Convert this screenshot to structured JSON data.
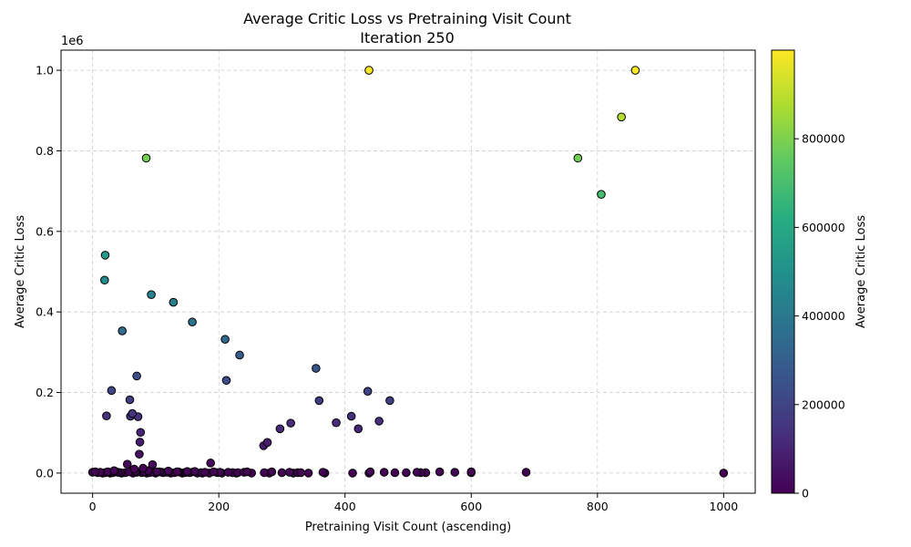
{
  "chart_data": {
    "type": "scatter",
    "title": "Average Critic Loss vs Pretraining Visit Count",
    "subtitle": "Iteration 250",
    "xlabel": "Pretraining Visit Count (ascending)",
    "ylabel": "Average Critic Loss",
    "y_offset_text": "1e6",
    "xlim": [
      -50,
      1050
    ],
    "ylim": [
      -50000,
      1050000
    ],
    "xticks": [
      0,
      200,
      400,
      600,
      800,
      1000
    ],
    "yticks": [
      0.0,
      0.2,
      0.4,
      0.6,
      0.8,
      1.0
    ],
    "ytick_scale": 1000000,
    "grid": true,
    "colorbar": {
      "label": "Average Critic Loss",
      "colormap": "viridis",
      "range": [
        0,
        1000000
      ],
      "ticks": [
        0,
        200000,
        400000,
        600000,
        800000
      ]
    },
    "points": [
      [
        860,
        1000000
      ],
      [
        438,
        1000000
      ],
      [
        838,
        884000
      ],
      [
        85,
        782000
      ],
      [
        769,
        782000
      ],
      [
        806,
        692000
      ],
      [
        20,
        541000
      ],
      [
        19,
        479000
      ],
      [
        93,
        443000
      ],
      [
        128,
        424000
      ],
      [
        158,
        375000
      ],
      [
        47,
        353000
      ],
      [
        210,
        332000
      ],
      [
        233,
        293000
      ],
      [
        354,
        260000
      ],
      [
        70,
        241000
      ],
      [
        212,
        230000
      ],
      [
        30,
        205000
      ],
      [
        436,
        203000
      ],
      [
        59,
        182000
      ],
      [
        359,
        180000
      ],
      [
        471,
        180000
      ],
      [
        22,
        142000
      ],
      [
        63,
        148000
      ],
      [
        60,
        141000
      ],
      [
        72,
        140000
      ],
      [
        410,
        141000
      ],
      [
        454,
        129000
      ],
      [
        386,
        125000
      ],
      [
        314,
        124000
      ],
      [
        297,
        110000
      ],
      [
        421,
        110000
      ],
      [
        76,
        101000
      ],
      [
        75,
        77000
      ],
      [
        277,
        76000
      ],
      [
        271,
        68000
      ],
      [
        74,
        47000
      ],
      [
        187,
        25000
      ],
      [
        55,
        22000
      ],
      [
        95,
        21000
      ],
      [
        80,
        12000
      ],
      [
        66,
        10000
      ],
      [
        1000,
        0
      ],
      [
        687,
        2000
      ],
      [
        600,
        3000
      ],
      [
        574,
        2000
      ],
      [
        550,
        3000
      ],
      [
        528,
        1000
      ],
      [
        520,
        1000
      ],
      [
        514,
        2000
      ],
      [
        497,
        1000
      ],
      [
        479,
        1000
      ],
      [
        462,
        2000
      ],
      [
        440,
        3000
      ],
      [
        438,
        0
      ],
      [
        412,
        0
      ],
      [
        368,
        0
      ],
      [
        365,
        2000
      ],
      [
        342,
        0
      ],
      [
        325,
        1000
      ],
      [
        318,
        0
      ],
      [
        312,
        2000
      ],
      [
        284,
        3000
      ],
      [
        280,
        0
      ],
      [
        272,
        1000
      ],
      [
        252,
        0
      ],
      [
        245,
        3000
      ],
      [
        240,
        2000
      ],
      [
        228,
        0
      ],
      [
        222,
        1000
      ],
      [
        215,
        2000
      ],
      [
        205,
        0
      ],
      [
        198,
        1000
      ],
      [
        192,
        3000
      ],
      [
        185,
        0
      ],
      [
        178,
        2000
      ],
      [
        172,
        1000
      ],
      [
        166,
        0
      ],
      [
        160,
        3000
      ],
      [
        154,
        1000
      ],
      [
        148,
        2000
      ],
      [
        142,
        0
      ],
      [
        136,
        3000
      ],
      [
        130,
        1000
      ],
      [
        124,
        0
      ],
      [
        118,
        2000
      ],
      [
        112,
        1000
      ],
      [
        106,
        3000
      ],
      [
        100,
        0
      ],
      [
        96,
        2000
      ],
      [
        90,
        1000
      ],
      [
        86,
        0
      ],
      [
        82,
        3000
      ],
      [
        78,
        1000
      ],
      [
        70,
        2000
      ],
      [
        64,
        0
      ],
      [
        58,
        3000
      ],
      [
        52,
        1000
      ],
      [
        46,
        0
      ],
      [
        40,
        2000
      ],
      [
        36,
        4000
      ],
      [
        32,
        1000
      ],
      [
        28,
        0
      ],
      [
        24,
        3000
      ],
      [
        20,
        1000
      ],
      [
        16,
        0
      ],
      [
        12,
        2000
      ],
      [
        8,
        1000
      ],
      [
        4,
        3000
      ],
      [
        0,
        2000
      ],
      [
        150,
        4000
      ],
      [
        120,
        5000
      ],
      [
        88,
        6000
      ],
      [
        102,
        3000
      ],
      [
        26,
        2000
      ],
      [
        34,
        6000
      ],
      [
        44,
        1000
      ],
      [
        68,
        4000
      ],
      [
        110,
        2000
      ],
      [
        134,
        3000
      ],
      [
        146,
        1000
      ],
      [
        162,
        4000
      ],
      [
        174,
        0
      ],
      [
        202,
        2000
      ],
      [
        230,
        1000
      ],
      [
        300,
        1000
      ],
      [
        330,
        1000
      ],
      [
        600,
        1000
      ]
    ]
  }
}
